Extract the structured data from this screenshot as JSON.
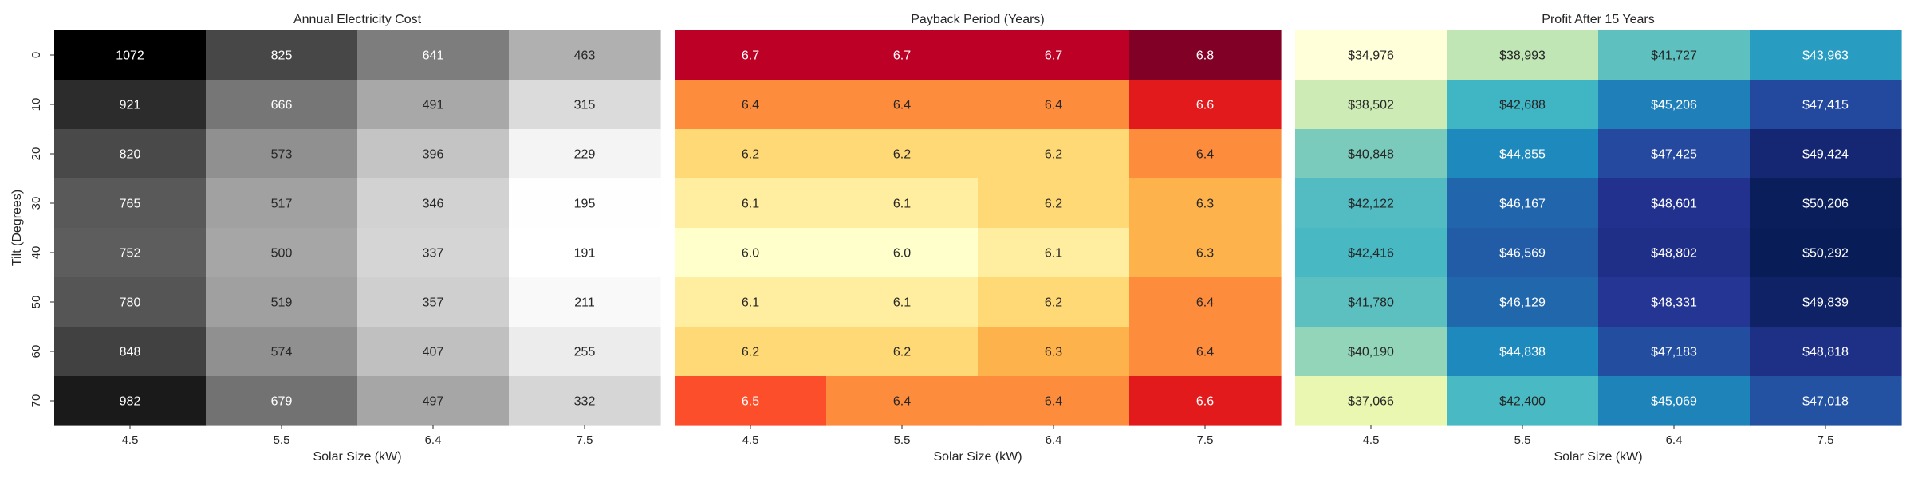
{
  "chart_data": [
    {
      "type": "heatmap",
      "title": "Annual Electricity Cost",
      "xlabel": "Solar Size (kW)",
      "ylabel": "Tilt (Degrees)",
      "x_categories": [
        "4.5",
        "5.5",
        "6.4",
        "7.5"
      ],
      "y_categories": [
        "0",
        "10",
        "20",
        "30",
        "40",
        "50",
        "60",
        "70"
      ],
      "colormap": "Greys",
      "color_low": "#ffffff",
      "color_high": "#000000",
      "values": [
        [
          1072,
          825,
          641,
          463
        ],
        [
          921,
          666,
          491,
          315
        ],
        [
          820,
          573,
          396,
          229
        ],
        [
          765,
          517,
          346,
          195
        ],
        [
          752,
          500,
          337,
          191
        ],
        [
          780,
          519,
          357,
          211
        ],
        [
          848,
          574,
          407,
          255
        ],
        [
          982,
          679,
          497,
          332
        ]
      ],
      "labels": [
        [
          "1072",
          "825",
          "641",
          "463"
        ],
        [
          "921",
          "666",
          "491",
          "315"
        ],
        [
          "820",
          "573",
          "396",
          "229"
        ],
        [
          "765",
          "517",
          "346",
          "195"
        ],
        [
          "752",
          "500",
          "337",
          "191"
        ],
        [
          "780",
          "519",
          "357",
          "211"
        ],
        [
          "848",
          "574",
          "407",
          "255"
        ],
        [
          "982",
          "679",
          "497",
          "332"
        ]
      ]
    },
    {
      "type": "heatmap",
      "title": "Payback Period (Years)",
      "xlabel": "Solar Size (kW)",
      "ylabel": "",
      "x_categories": [
        "4.5",
        "5.5",
        "6.4",
        "7.5"
      ],
      "y_categories": [
        "0",
        "10",
        "20",
        "30",
        "40",
        "50",
        "60",
        "70"
      ],
      "colormap": "YlOrRd",
      "values": [
        [
          6.7,
          6.7,
          6.7,
          6.8
        ],
        [
          6.4,
          6.4,
          6.4,
          6.6
        ],
        [
          6.2,
          6.2,
          6.2,
          6.4
        ],
        [
          6.1,
          6.1,
          6.2,
          6.3
        ],
        [
          6.0,
          6.0,
          6.1,
          6.3
        ],
        [
          6.1,
          6.1,
          6.2,
          6.4
        ],
        [
          6.2,
          6.2,
          6.3,
          6.4
        ],
        [
          6.5,
          6.4,
          6.4,
          6.6
        ]
      ],
      "labels": [
        [
          "6.7",
          "6.7",
          "6.7",
          "6.8"
        ],
        [
          "6.4",
          "6.4",
          "6.4",
          "6.6"
        ],
        [
          "6.2",
          "6.2",
          "6.2",
          "6.4"
        ],
        [
          "6.1",
          "6.1",
          "6.2",
          "6.3"
        ],
        [
          "6.0",
          "6.0",
          "6.1",
          "6.3"
        ],
        [
          "6.1",
          "6.1",
          "6.2",
          "6.4"
        ],
        [
          "6.2",
          "6.2",
          "6.3",
          "6.4"
        ],
        [
          "6.5",
          "6.4",
          "6.4",
          "6.6"
        ]
      ]
    },
    {
      "type": "heatmap",
      "title": "Profit After 15 Years",
      "xlabel": "Solar Size (kW)",
      "ylabel": "",
      "x_categories": [
        "4.5",
        "5.5",
        "6.4",
        "7.5"
      ],
      "y_categories": [
        "0",
        "10",
        "20",
        "30",
        "40",
        "50",
        "60",
        "70"
      ],
      "colormap": "YlGnBu",
      "values": [
        [
          34976,
          38993,
          41727,
          43963
        ],
        [
          38502,
          42688,
          45206,
          47415
        ],
        [
          40848,
          44855,
          47425,
          49424
        ],
        [
          42122,
          46167,
          48601,
          50206
        ],
        [
          42416,
          46569,
          48802,
          50292
        ],
        [
          41780,
          46129,
          48331,
          49839
        ],
        [
          40190,
          44838,
          47183,
          48818
        ],
        [
          37066,
          42400,
          45069,
          47018
        ]
      ],
      "labels": [
        [
          "$34,976",
          "$38,993",
          "$41,727",
          "$43,963"
        ],
        [
          "$38,502",
          "$42,688",
          "$45,206",
          "$47,415"
        ],
        [
          "$40,848",
          "$44,855",
          "$47,425",
          "$49,424"
        ],
        [
          "$42,122",
          "$46,167",
          "$48,601",
          "$50,206"
        ],
        [
          "$42,416",
          "$46,569",
          "$48,802",
          "$50,292"
        ],
        [
          "$41,780",
          "$46,129",
          "$48,331",
          "$49,839"
        ],
        [
          "$40,190",
          "$44,838",
          "$47,183",
          "$48,818"
        ],
        [
          "$37,066",
          "$42,400",
          "$45,069",
          "$47,018"
        ]
      ]
    }
  ]
}
